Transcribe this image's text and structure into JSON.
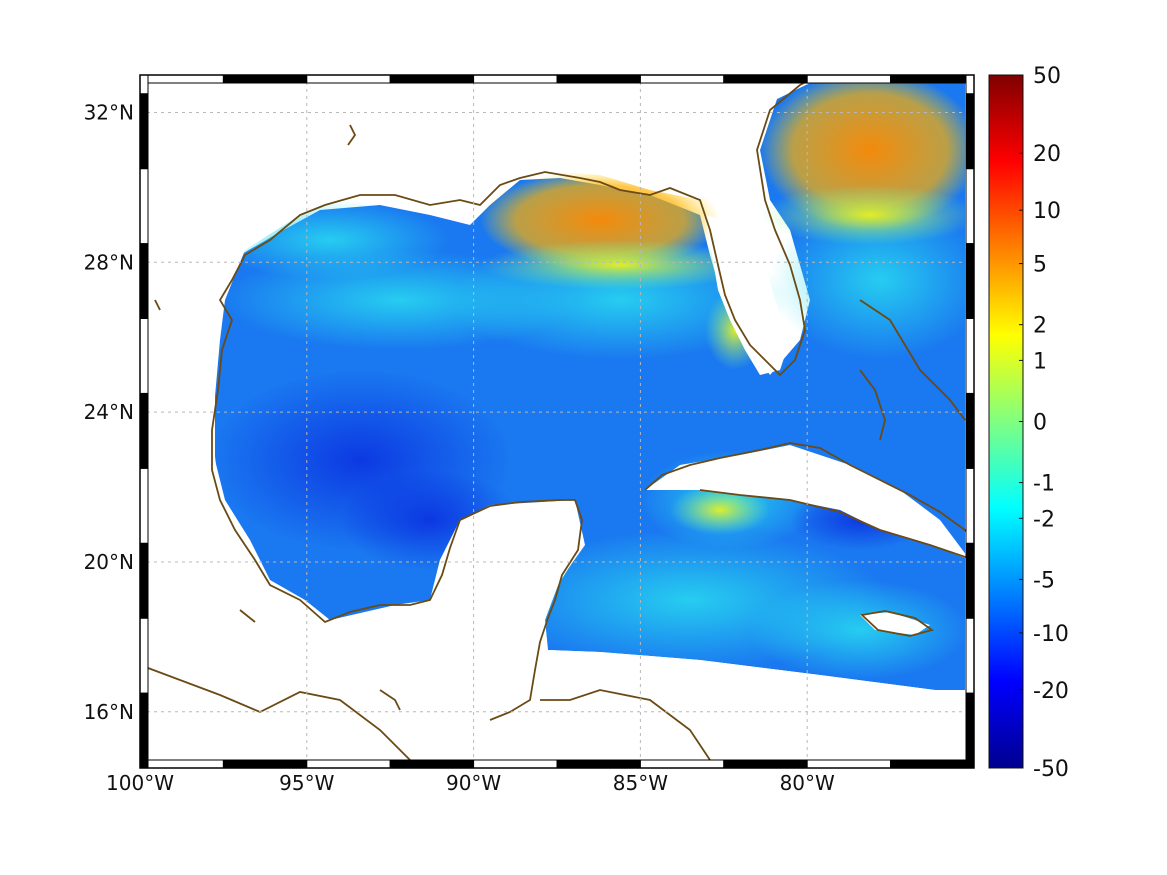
{
  "map": {
    "region": "Gulf of Mexico and western Caribbean",
    "lon_range": [
      -100,
      -75
    ],
    "lat_range": [
      14.5,
      33
    ],
    "lon_ticks": [
      {
        "value": -100,
        "label": "100°W"
      },
      {
        "value": -95,
        "label": "95°W"
      },
      {
        "value": -90,
        "label": "90°W"
      },
      {
        "value": -85,
        "label": "85°W"
      },
      {
        "value": -80,
        "label": "80°W"
      }
    ],
    "lat_ticks": [
      {
        "value": 32,
        "label": "32°N"
      },
      {
        "value": 28,
        "label": "28°N"
      },
      {
        "value": 24,
        "label": "24°N"
      },
      {
        "value": 20,
        "label": "20°N"
      },
      {
        "value": 16,
        "label": "16°N"
      }
    ],
    "grid": true,
    "frame_style": "alternating black/white border",
    "coastline_color": "#6b4a14",
    "land_color": "#ffffff"
  },
  "colorbar": {
    "position": "right",
    "scale": "symmetric nonlinear",
    "colormap": "jet",
    "ticks": [
      "50",
      "20",
      "10",
      "5",
      "2",
      "1",
      "0",
      "-1",
      "-2",
      "-5",
      "-10",
      "-20",
      "-50"
    ],
    "tick_values": [
      50,
      20,
      10,
      5,
      2,
      1,
      0,
      -1,
      -2,
      -5,
      -10,
      -20,
      -50
    ]
  }
}
